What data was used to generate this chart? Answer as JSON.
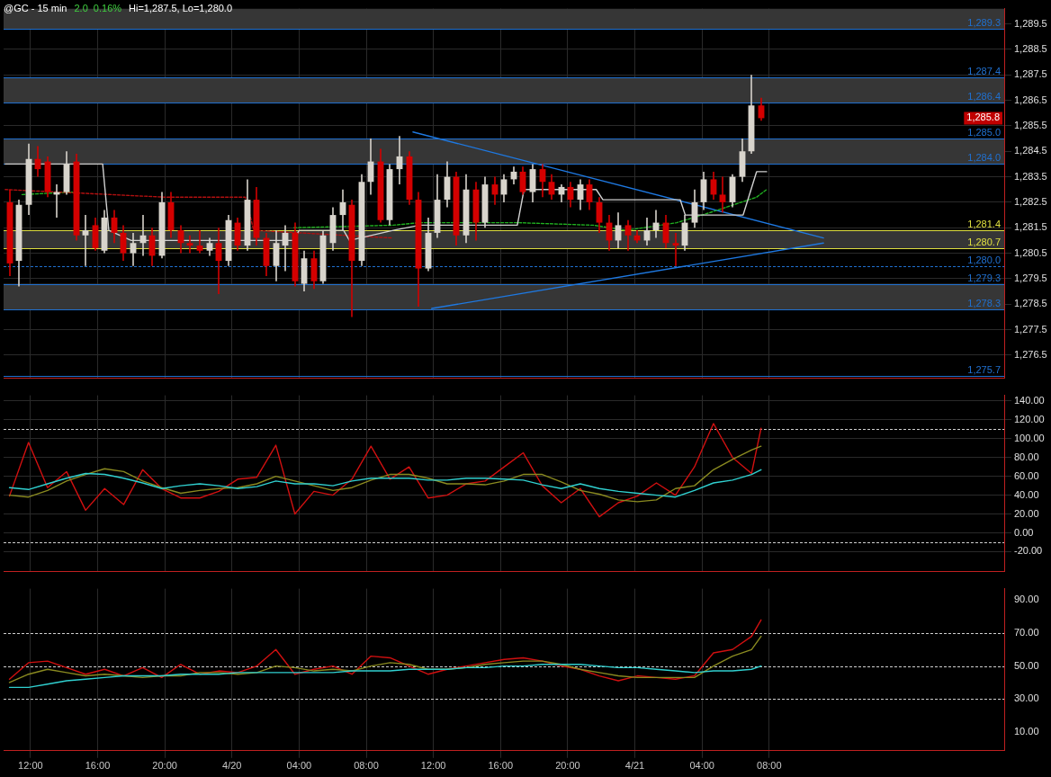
{
  "chart_data": [
    {
      "type": "candlestick",
      "title": "@GC - 15 min",
      "subtitle": "2.0  0.16%",
      "annotations": [
        "Hi=1,287.5, Lo=1,280.0",
        "1,285.8"
      ],
      "x": [
        "--04-19T10:45",
        "--04-19T11:19",
        "--04-19T11:53",
        "--04-19T12:27",
        "--04-19T13:01",
        "--04-19T13:35",
        "--04-19T14:09",
        "--04-19T14:43",
        "--04-19T15:17",
        "--04-19T15:51",
        "--04-19T16:25",
        "--04-19T16:59",
        "--04-19T17:33",
        "--04-19T18:07",
        "--04-19T18:41",
        "--04-19T19:15",
        "--04-19T19:49",
        "--04-19T20:23",
        "--04-19T20:57",
        "--04-19T21:31",
        "--04-19T22:05",
        "--04-19T22:39",
        "--04-19T23:13",
        "--04-19T23:47",
        "--04-20T00:21",
        "--04-20T00:55",
        "--04-20T01:29",
        "--04-20T02:03",
        "--04-20T02:37",
        "--04-20T03:11",
        "--04-20T03:45",
        "--04-20T04:19",
        "--04-20T04:53",
        "--04-20T05:27",
        "--04-20T06:01",
        "--04-20T06:35",
        "--04-20T07:09",
        "--04-20T07:43",
        "--04-20T08:17",
        "--04-20T08:51",
        "--04-20T09:25",
        "--04-20T09:59",
        "--04-20T10:33",
        "--04-20T11:07",
        "--04-20T11:41",
        "--04-20T12:15",
        "--04-20T12:49",
        "--04-20T13:23",
        "--04-20T13:57",
        "--04-20T14:31",
        "--04-20T15:05",
        "--04-20T15:39",
        "--04-20T16:13",
        "--04-20T16:47",
        "--04-20T17:21",
        "--04-20T17:55",
        "--04-20T18:29",
        "--04-20T19:03",
        "--04-20T19:37",
        "--04-20T20:11",
        "--04-20T20:45",
        "--04-20T21:19",
        "--04-20T21:53",
        "--04-20T22:27",
        "--04-20T23:01",
        "--04-20T23:35",
        "--04-21T00:09",
        "--04-21T00:43",
        "--04-21T01:17",
        "--04-21T01:51",
        "--04-21T02:25",
        "--04-21T02:59",
        "--04-21T03:33",
        "--04-21T04:07",
        "--04-21T04:41",
        "--04-21T05:15",
        "--04-21T05:49",
        "--04-21T06:23",
        "--04-21T06:57",
        "--04-21T07:31"
      ],
      "ohlc": [
        [
          1282.5,
          1283.0,
          1279.6,
          1280.1
        ],
        [
          1280.2,
          1282.6,
          1279.2,
          1282.4
        ],
        [
          1282.4,
          1284.8,
          1282.0,
          1284.2
        ],
        [
          1284.2,
          1284.7,
          1283.5,
          1283.8
        ],
        [
          1284.1,
          1284.3,
          1282.7,
          1282.9
        ],
        [
          1282.8,
          1283.2,
          1281.9,
          1282.9
        ],
        [
          1282.9,
          1284.5,
          1282.8,
          1284.0
        ],
        [
          1284.1,
          1284.4,
          1281.0,
          1281.2
        ],
        [
          1281.2,
          1282.0,
          1280.0,
          1281.4
        ],
        [
          1281.6,
          1281.9,
          1280.6,
          1280.7
        ],
        [
          1280.6,
          1282.2,
          1280.5,
          1281.9
        ],
        [
          1281.9,
          1282.2,
          1280.9,
          1281.3
        ],
        [
          1281.3,
          1281.6,
          1280.2,
          1280.5
        ],
        [
          1280.5,
          1281.3,
          1280.0,
          1280.9
        ],
        [
          1280.9,
          1282.0,
          1280.4,
          1281.2
        ],
        [
          1281.2,
          1281.5,
          1280.0,
          1280.4
        ],
        [
          1280.4,
          1282.9,
          1280.3,
          1282.5
        ],
        [
          1282.5,
          1282.9,
          1281.1,
          1281.4
        ],
        [
          1281.4,
          1281.6,
          1280.5,
          1280.9
        ],
        [
          1280.9,
          1281.2,
          1280.5,
          1280.8
        ],
        [
          1280.8,
          1281.4,
          1280.5,
          1280.6
        ],
        [
          1280.6,
          1281.1,
          1280.4,
          1280.9
        ],
        [
          1280.9,
          1281.5,
          1278.9,
          1280.2
        ],
        [
          1280.2,
          1282.0,
          1280.0,
          1281.8
        ],
        [
          1281.7,
          1281.9,
          1280.6,
          1280.8
        ],
        [
          1280.8,
          1283.4,
          1280.6,
          1282.6
        ],
        [
          1282.6,
          1283.1,
          1280.8,
          1281.1
        ],
        [
          1281.1,
          1281.3,
          1279.6,
          1280.0
        ],
        [
          1280.0,
          1281.4,
          1279.4,
          1280.9
        ],
        [
          1280.8,
          1281.6,
          1279.8,
          1281.3
        ],
        [
          1281.3,
          1281.7,
          1279.2,
          1279.4
        ],
        [
          1279.3,
          1280.6,
          1279.0,
          1280.3
        ],
        [
          1280.3,
          1280.6,
          1279.1,
          1279.4
        ],
        [
          1279.4,
          1281.4,
          1279.3,
          1281.2
        ],
        [
          1280.9,
          1282.3,
          1280.6,
          1282.0
        ],
        [
          1282.0,
          1283.0,
          1281.4,
          1282.5
        ],
        [
          1282.4,
          1282.6,
          1278.0,
          1280.2
        ],
        [
          1280.2,
          1283.6,
          1280.0,
          1283.3
        ],
        [
          1283.3,
          1285.0,
          1282.8,
          1284.1
        ],
        [
          1284.1,
          1284.6,
          1281.7,
          1281.8
        ],
        [
          1281.8,
          1284.0,
          1281.6,
          1283.8
        ],
        [
          1283.8,
          1285.1,
          1283.2,
          1284.3
        ],
        [
          1284.3,
          1284.5,
          1282.4,
          1282.6
        ],
        [
          1282.6,
          1282.9,
          1278.4,
          1279.9
        ],
        [
          1279.9,
          1281.9,
          1279.8,
          1281.3
        ],
        [
          1281.3,
          1283.6,
          1281.1,
          1282.6
        ],
        [
          1282.6,
          1284.1,
          1282.3,
          1283.5
        ],
        [
          1283.5,
          1283.7,
          1280.8,
          1281.2
        ],
        [
          1281.2,
          1283.6,
          1280.9,
          1283.0
        ],
        [
          1283.0,
          1283.3,
          1281.0,
          1281.7
        ],
        [
          1281.7,
          1283.5,
          1281.5,
          1283.2
        ],
        [
          1283.2,
          1283.5,
          1282.4,
          1282.8
        ],
        [
          1282.8,
          1283.6,
          1282.5,
          1283.4
        ],
        [
          1283.4,
          1283.9,
          1283.2,
          1283.7
        ],
        [
          1283.7,
          1283.9,
          1282.8,
          1282.9
        ],
        [
          1282.9,
          1284.0,
          1282.5,
          1283.8
        ],
        [
          1283.8,
          1284.0,
          1282.7,
          1283.3
        ],
        [
          1283.3,
          1283.6,
          1282.6,
          1282.8
        ],
        [
          1282.8,
          1283.2,
          1282.5,
          1283.1
        ],
        [
          1283.1,
          1283.3,
          1282.3,
          1282.6
        ],
        [
          1282.6,
          1283.4,
          1282.2,
          1283.2
        ],
        [
          1283.2,
          1283.4,
          1282.2,
          1282.5
        ],
        [
          1282.5,
          1282.7,
          1281.3,
          1281.7
        ],
        [
          1281.7,
          1282.0,
          1280.6,
          1281.0
        ],
        [
          1281.0,
          1282.1,
          1280.7,
          1281.6
        ],
        [
          1281.6,
          1281.8,
          1280.6,
          1281.2
        ],
        [
          1281.2,
          1281.4,
          1280.9,
          1281.0
        ],
        [
          1281.0,
          1281.9,
          1280.8,
          1281.4
        ],
        [
          1281.4,
          1282.2,
          1281.1,
          1281.7
        ],
        [
          1281.7,
          1282.0,
          1280.7,
          1280.9
        ],
        [
          1280.9,
          1281.3,
          1280.0,
          1280.8
        ],
        [
          1280.8,
          1282.0,
          1280.6,
          1281.7
        ],
        [
          1281.7,
          1283.0,
          1281.5,
          1282.5
        ],
        [
          1282.5,
          1283.7,
          1282.2,
          1283.4
        ],
        [
          1283.4,
          1283.7,
          1282.6,
          1282.8
        ],
        [
          1282.8,
          1283.5,
          1282.1,
          1282.5
        ],
        [
          1282.5,
          1283.6,
          1282.3,
          1283.5
        ],
        [
          1283.5,
          1285.0,
          1283.3,
          1284.5
        ],
        [
          1284.5,
          1287.5,
          1284.4,
          1286.3
        ],
        [
          1286.3,
          1286.6,
          1285.7,
          1285.8
        ]
      ],
      "series": [
        {
          "type": "line",
          "color": "#d0d0d0",
          "x": [
            "--04-19T10:30",
            "--04-19T16:18",
            "--04-19T16:40",
            "--04-19T18:00",
            "--04-20T03:42",
            "--04-20T04:00",
            "--04-20T06:39",
            "--04-20T07:00",
            "--04-20T09:36",
            "--04-20T11:12",
            "--04-20T17:00",
            "--04-20T17:24",
            "--04-20T21:42",
            "--04-20T22:06",
            "--04-21T02:42",
            "--04-21T03:00",
            "--04-21T06:27",
            "--04-21T07:15",
            "--04-21T07:51"
          ],
          "values": [
            1284.0,
            1284.0,
            1281.4,
            1281.0,
            1281.0,
            1281.4,
            1281.4,
            1281.0,
            1281.4,
            1281.6,
            1281.6,
            1283.0,
            1283.0,
            1282.6,
            1282.6,
            1282.0,
            1282.0,
            1283.7,
            1283.7
          ]
        },
        {
          "type": "line",
          "color": "#b01010",
          "line_style": "dashed",
          "x": [
            "--04-19T10:30",
            "--04-19T20:00",
            "--04-20T00:48",
            "--04-20T01:18",
            "--04-20T09:30"
          ],
          "values": [
            1283.0,
            1282.7,
            1282.7,
            1281.4,
            1281.1
          ]
        },
        {
          "type": "line",
          "color": "#20b020",
          "line_style": "dashed",
          "x": [
            "--04-19T11:30",
            "--04-19T14:30",
            "--04-19T15:00",
            "--04-20T03:42",
            "--04-20T09:36",
            "--04-20T11:12",
            "--04-20T17:00",
            "--04-20T21:30",
            "--04-20T23:30",
            "--04-21T02:30",
            "--04-21T04:30",
            "--04-21T07:15",
            "--04-21T07:51"
          ],
          "values": [
            1282.8,
            1282.9,
            null,
            1281.5,
            1281.6,
            1281.7,
            1281.7,
            1281.6,
            1281.4,
            1281.7,
            1282.1,
            1282.7,
            1283.0
          ]
        },
        {
          "type": "line",
          "color": "#1e78e0",
          "x": [
            "--04-20T10:47",
            "--04-21T11:14"
          ],
          "values": [
            1285.26,
            1281.1
          ]
        },
        {
          "type": "line",
          "color": "#1e78e0",
          "x": [
            "--04-20T11:54",
            "--04-21T11:14"
          ],
          "values": [
            1278.33,
            1280.9
          ]
        }
      ],
      "bands": [
        {
          "axis": "y",
          "from": 1289.3,
          "to": 1290.1,
          "color": "#363636"
        },
        {
          "axis": "y",
          "from": 1286.4,
          "to": 1287.4,
          "color": "#363636"
        },
        {
          "axis": "y",
          "from": 1284.0,
          "to": 1285.0,
          "color": "#363636"
        },
        {
          "axis": "y",
          "from": 1280.7,
          "to": 1281.4,
          "color": "#363636"
        },
        {
          "axis": "y",
          "from": 1278.3,
          "to": 1279.3,
          "color": "#363636"
        }
      ],
      "ref_lines": [
        {
          "axis": "y",
          "value": 1289.3,
          "label": "1,289.3",
          "color": "#2070d0"
        },
        {
          "axis": "y",
          "value": 1287.4,
          "label": "1,287.4",
          "color": "#2070d0"
        },
        {
          "axis": "y",
          "value": 1286.4,
          "label": "1,286.4",
          "color": "#2070d0"
        },
        {
          "axis": "y",
          "value": 1285.0,
          "label": "1,285.0",
          "color": "#2070d0"
        },
        {
          "axis": "y",
          "value": 1284.0,
          "label": "1,284.0",
          "color": "#2070d0"
        },
        {
          "axis": "y",
          "value": 1281.4,
          "label": "1,281.4",
          "color": "#e0e040"
        },
        {
          "axis": "y",
          "value": 1280.7,
          "label": "1,280.7",
          "color": "#e0e040"
        },
        {
          "axis": "y",
          "value": 1280.0,
          "label": "1,280.0",
          "color": "#2070d0",
          "line_style": "dashed"
        },
        {
          "axis": "y",
          "value": 1279.3,
          "label": "1,279.3",
          "color": "#2070d0"
        },
        {
          "axis": "y",
          "value": 1278.3,
          "label": "1,278.3",
          "color": "#2070d0"
        },
        {
          "axis": "y",
          "value": 1275.7,
          "label": "1,275.7",
          "color": "#2070d0"
        }
      ],
      "xlim": [
        "--04-19T10:24",
        "--04-21T22:00"
      ],
      "xticks": [
        "--04-19T12:00",
        "--04-19T16:00",
        "--04-19T20:00",
        "--04-20T00:00",
        "--04-20T04:00",
        "--04-20T08:00",
        "--04-20T12:00",
        "--04-20T16:00",
        "--04-20T20:00",
        "--04-21T00:00",
        "--04-21T04:00",
        "--04-21T08:00"
      ],
      "ylim": [
        1275.6,
        1290.1
      ],
      "yticks": [
        {
          "value": 1276.5,
          "label": "1,276.5"
        },
        {
          "value": 1277.5,
          "label": "1,277.5"
        },
        {
          "value": 1278.5,
          "label": "1,278.5"
        },
        {
          "value": 1279.5,
          "label": "1,279.5"
        },
        {
          "value": 1280.5,
          "label": "1,280.5"
        },
        {
          "value": 1281.5,
          "label": "1,281.5"
        },
        {
          "value": 1282.5,
          "label": "1,282.5"
        },
        {
          "value": 1283.5,
          "label": "1,283.5"
        },
        {
          "value": 1284.5,
          "label": "1,284.5"
        },
        {
          "value": 1285.5,
          "label": "1,285.5"
        },
        {
          "value": 1286.5,
          "label": "1,286.5"
        },
        {
          "value": 1287.5,
          "label": "1,287.5"
        },
        {
          "value": 1288.5,
          "label": "1,288.5"
        },
        {
          "value": 1289.5,
          "label": "1,289.5"
        }
      ],
      "grid": true,
      "tick_labels": "y"
    },
    {
      "type": "line",
      "x": [
        "--04-19T10:45",
        "--04-19T11:53",
        "--04-19T13:01",
        "--04-19T14:09",
        "--04-19T15:17",
        "--04-19T16:25",
        "--04-19T17:33",
        "--04-19T18:41",
        "--04-19T19:49",
        "--04-19T20:57",
        "--04-19T22:05",
        "--04-19T23:13",
        "--04-20T00:21",
        "--04-20T01:29",
        "--04-20T02:37",
        "--04-20T03:45",
        "--04-20T04:53",
        "--04-20T06:01",
        "--04-20T07:09",
        "--04-20T08:17",
        "--04-20T09:25",
        "--04-20T10:33",
        "--04-20T11:41",
        "--04-20T12:49",
        "--04-20T13:57",
        "--04-20T15:05",
        "--04-20T16:13",
        "--04-20T17:21",
        "--04-20T18:29",
        "--04-20T19:37",
        "--04-20T20:45",
        "--04-20T21:53",
        "--04-20T23:01",
        "--04-21T00:09",
        "--04-21T01:17",
        "--04-21T02:25",
        "--04-21T03:33",
        "--04-21T04:41",
        "--04-21T05:49",
        "--04-21T06:57",
        "--04-21T07:31"
      ],
      "series": [
        {
          "color": "#30d0d0",
          "values": [
            48,
            46,
            52,
            58,
            63,
            62,
            58,
            53,
            47,
            50,
            52,
            50,
            47,
            49,
            55,
            52,
            52,
            50,
            55,
            58,
            58,
            58,
            56,
            56,
            58,
            58,
            57,
            56,
            51,
            47,
            52,
            47,
            44,
            42,
            40,
            38,
            45,
            53,
            56,
            62,
            67
          ]
        },
        {
          "color": "#8a8a20",
          "values": [
            40,
            38,
            45,
            55,
            62,
            68,
            65,
            55,
            48,
            42,
            45,
            47,
            48,
            52,
            60,
            55,
            50,
            45,
            48,
            56,
            62,
            62,
            58,
            52,
            52,
            51,
            55,
            62,
            62,
            54,
            45,
            41,
            35,
            33,
            35,
            47,
            50,
            67,
            78,
            88,
            92
          ]
        },
        {
          "color": "#d01010",
          "values": [
            39,
            96,
            48,
            65,
            24,
            47,
            30,
            67,
            47,
            37,
            37,
            44,
            57,
            59,
            93,
            20,
            44,
            40,
            57,
            92,
            57,
            70,
            37,
            40,
            52,
            55,
            70,
            85,
            50,
            32,
            47,
            17,
            32,
            39,
            53,
            40,
            70,
            116,
            80,
            63,
            111
          ]
        }
      ],
      "ref_lines": [
        {
          "axis": "y",
          "value": 110,
          "color": "#d0d0d0",
          "line_style": "dashed"
        },
        {
          "axis": "y",
          "value": -10,
          "color": "#d0d0d0",
          "line_style": "dashed"
        }
      ],
      "xlim": [
        "--04-19T10:24",
        "--04-21T22:00"
      ],
      "xticks": [
        "--04-19T12:00",
        "--04-19T16:00",
        "--04-19T20:00",
        "--04-20T00:00",
        "--04-20T04:00",
        "--04-20T08:00",
        "--04-20T12:00",
        "--04-20T16:00",
        "--04-20T20:00",
        "--04-21T00:00",
        "--04-21T04:00",
        "--04-21T08:00"
      ],
      "ylim": [
        -41,
        146
      ],
      "yticks": [
        {
          "value": -20,
          "label": "-20.00"
        },
        {
          "value": 0,
          "label": "0.00"
        },
        {
          "value": 20,
          "label": "20.00"
        },
        {
          "value": 40,
          "label": "40.00"
        },
        {
          "value": 60,
          "label": "60.00"
        },
        {
          "value": 80,
          "label": "80.00"
        },
        {
          "value": 100,
          "label": "100.00"
        },
        {
          "value": 120,
          "label": "120.00"
        },
        {
          "value": 140,
          "label": "140.00"
        }
      ],
      "grid": true,
      "tick_labels": "y"
    },
    {
      "type": "line",
      "x": [
        "--04-19T10:45",
        "--04-19T11:53",
        "--04-19T13:01",
        "--04-19T14:09",
        "--04-19T15:17",
        "--04-19T16:25",
        "--04-19T17:33",
        "--04-19T18:41",
        "--04-19T19:49",
        "--04-19T20:57",
        "--04-19T22:05",
        "--04-19T23:13",
        "--04-20T00:21",
        "--04-20T01:29",
        "--04-20T02:37",
        "--04-20T03:45",
        "--04-20T04:53",
        "--04-20T06:01",
        "--04-20T07:09",
        "--04-20T08:17",
        "--04-20T09:25",
        "--04-20T10:33",
        "--04-20T11:41",
        "--04-20T12:49",
        "--04-20T13:57",
        "--04-20T15:05",
        "--04-20T16:13",
        "--04-20T17:21",
        "--04-20T18:29",
        "--04-20T19:37",
        "--04-20T20:45",
        "--04-20T21:53",
        "--04-20T23:01",
        "--04-21T00:09",
        "--04-21T01:17",
        "--04-21T02:25",
        "--04-21T03:33",
        "--04-21T04:41",
        "--04-21T05:49",
        "--04-21T06:57",
        "--04-21T07:31"
      ],
      "series": [
        {
          "color": "#30d0d0",
          "values": [
            37,
            37,
            39,
            41,
            42,
            43,
            44,
            44,
            44,
            45,
            45,
            45,
            46,
            46,
            46,
            46,
            46,
            46,
            47,
            47,
            47,
            48,
            48,
            48,
            49,
            49,
            50,
            50,
            51,
            51,
            51,
            50,
            49,
            49,
            48,
            47,
            46,
            47,
            47,
            48,
            50
          ]
        },
        {
          "color": "#8a8a20",
          "values": [
            40,
            45,
            48,
            46,
            44,
            45,
            44,
            43,
            44,
            44,
            46,
            46,
            45,
            46,
            50,
            49,
            47,
            48,
            47,
            50,
            52,
            51,
            48,
            48,
            49,
            51,
            52,
            53,
            53,
            51,
            48,
            46,
            44,
            43,
            43,
            43,
            43,
            50,
            56,
            60,
            68
          ]
        },
        {
          "color": "#d01010",
          "values": [
            42,
            52,
            53,
            49,
            45,
            48,
            44,
            49,
            43,
            51,
            45,
            47,
            46,
            50,
            60,
            45,
            48,
            50,
            45,
            56,
            55,
            50,
            45,
            48,
            50,
            52,
            54,
            55,
            53,
            50,
            48,
            44,
            41,
            44,
            43,
            42,
            44,
            58,
            60,
            68,
            78
          ]
        }
      ],
      "ref_lines": [
        {
          "axis": "y",
          "value": 70,
          "color": "#d0d0d0",
          "line_style": "dashed"
        },
        {
          "axis": "y",
          "value": 50,
          "color": "#d0d0d0",
          "line_style": "dashed"
        },
        {
          "axis": "y",
          "value": 30,
          "color": "#d0d0d0",
          "line_style": "dashed"
        }
      ],
      "xlim": [
        "--04-19T10:24",
        "--04-21T22:00"
      ],
      "xticks": [
        {
          "value": "--04-19T12:00",
          "label": "12:00"
        },
        {
          "value": "--04-19T16:00",
          "label": "16:00"
        },
        {
          "value": "--04-19T20:00",
          "label": "20:00"
        },
        {
          "value": "--04-20T00:00",
          "label": "4/20"
        },
        {
          "value": "--04-20T04:00",
          "label": "04:00"
        },
        {
          "value": "--04-20T08:00",
          "label": "08:00"
        },
        {
          "value": "--04-20T12:00",
          "label": "12:00"
        },
        {
          "value": "--04-20T16:00",
          "label": "16:00"
        },
        {
          "value": "--04-20T20:00",
          "label": "20:00"
        },
        {
          "value": "--04-21T00:00",
          "label": "4/21"
        },
        {
          "value": "--04-21T04:00",
          "label": "04:00"
        },
        {
          "value": "--04-21T08:00",
          "label": "08:00"
        }
      ],
      "ylim": [
        -1.5,
        97
      ],
      "yticks": [
        {
          "value": 10,
          "label": "10.00"
        },
        {
          "value": 30,
          "label": "30.00"
        },
        {
          "value": 50,
          "label": "50.00"
        },
        {
          "value": 70,
          "label": "70.00"
        },
        {
          "value": 90,
          "label": "90.00"
        }
      ],
      "grid": "x"
    }
  ]
}
